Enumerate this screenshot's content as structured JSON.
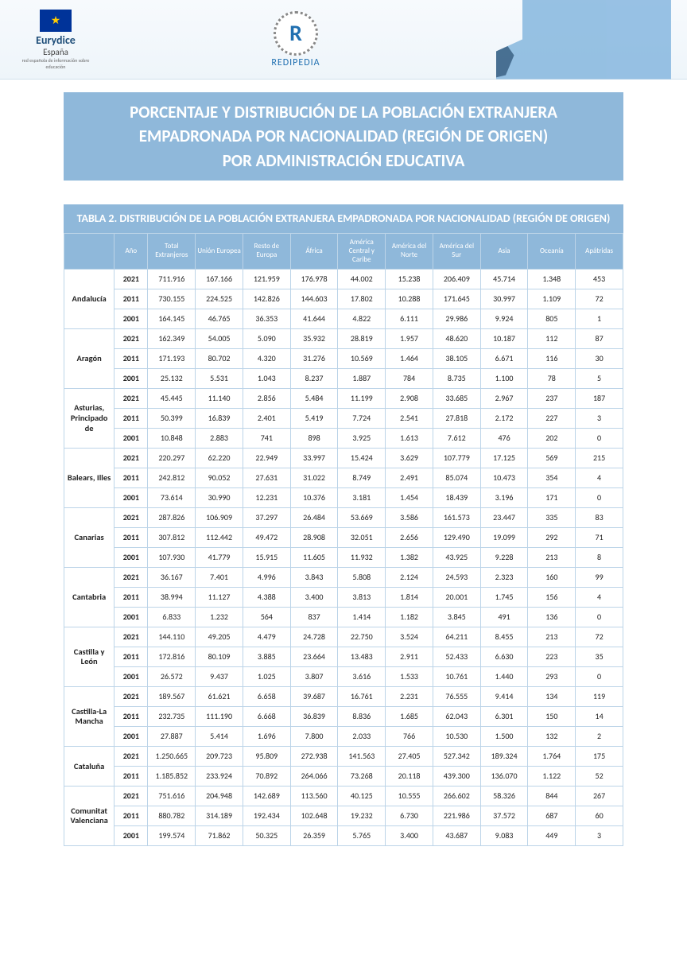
{
  "header": {
    "eurydice": "Eurydice",
    "espana": "España",
    "sub": "red española de información sobre educación",
    "redipedia": "REDIPEDIA",
    "r": "R"
  },
  "title": {
    "line1": "PORCENTAJE Y DISTRIBUCIÓN DE LA POBLACIÓN EXTRANJERA",
    "line2": "EMPADRONADA POR NACIONALIDAD (REGIÓN DE ORIGEN)",
    "line3": "POR ADMINISTRACIÓN EDUCATIVA"
  },
  "table": {
    "title": "TABLA 2. DISTRIBUCIÓN DE LA POBLACIÓN EXTRANJERA EMPADRONADA POR NACIONALIDAD (REGIÓN DE ORIGEN)",
    "columns": [
      "",
      "Año",
      "Total Extranjeros",
      "Unión Europea",
      "Resto de Europa",
      "África",
      "América Central y Caribe",
      "América del Norte",
      "América del Sur",
      "Asia",
      "Oceanía",
      "Apátridas"
    ],
    "regions": [
      {
        "name": "Andalucía",
        "rows": [
          [
            "2021",
            "711.916",
            "167.166",
            "121.959",
            "176.978",
            "44.002",
            "15.238",
            "206.409",
            "45.714",
            "1.348",
            "453"
          ],
          [
            "2011",
            "730.155",
            "224.525",
            "142.826",
            "144.603",
            "17.802",
            "10.288",
            "171.645",
            "30.997",
            "1.109",
            "72"
          ],
          [
            "2001",
            "164.145",
            "46.765",
            "36.353",
            "41.644",
            "4.822",
            "6.111",
            "29.986",
            "9.924",
            "805",
            "1"
          ]
        ]
      },
      {
        "name": "Aragón",
        "rows": [
          [
            "2021",
            "162.349",
            "54.005",
            "5.090",
            "35.932",
            "28.819",
            "1.957",
            "48.620",
            "10.187",
            "112",
            "87"
          ],
          [
            "2011",
            "171.193",
            "80.702",
            "4.320",
            "31.276",
            "10.569",
            "1.464",
            "38.105",
            "6.671",
            "116",
            "30"
          ],
          [
            "2001",
            "25.132",
            "5.531",
            "1.043",
            "8.237",
            "1.887",
            "784",
            "8.735",
            "1.100",
            "78",
            "5"
          ]
        ]
      },
      {
        "name": "Asturias, Principado de",
        "rows": [
          [
            "2021",
            "45.445",
            "11.140",
            "2.856",
            "5.484",
            "11.199",
            "2.908",
            "33.685",
            "2.967",
            "237",
            "187"
          ],
          [
            "2011",
            "50.399",
            "16.839",
            "2.401",
            "5.419",
            "7.724",
            "2.541",
            "27.818",
            "2.172",
            "227",
            "3"
          ],
          [
            "2001",
            "10.848",
            "2.883",
            "741",
            "898",
            "3.925",
            "1.613",
            "7.612",
            "476",
            "202",
            "0"
          ]
        ]
      },
      {
        "name": "Balears, Illes",
        "rows": [
          [
            "2021",
            "220.297",
            "62.220",
            "22.949",
            "33.997",
            "15.424",
            "3.629",
            "107.779",
            "17.125",
            "569",
            "215"
          ],
          [
            "2011",
            "242.812",
            "90.052",
            "27.631",
            "31.022",
            "8.749",
            "2.491",
            "85.074",
            "10.473",
            "354",
            "4"
          ],
          [
            "2001",
            "73.614",
            "30.990",
            "12.231",
            "10.376",
            "3.181",
            "1.454",
            "18.439",
            "3.196",
            "171",
            "0"
          ]
        ]
      },
      {
        "name": "Canarias",
        "rows": [
          [
            "2021",
            "287.826",
            "106.909",
            "37.297",
            "26.484",
            "53.669",
            "3.586",
            "161.573",
            "23.447",
            "335",
            "83"
          ],
          [
            "2011",
            "307.812",
            "112.442",
            "49.472",
            "28.908",
            "32.051",
            "2.656",
            "129.490",
            "19.099",
            "292",
            "71"
          ],
          [
            "2001",
            "107.930",
            "41.779",
            "15.915",
            "11.605",
            "11.932",
            "1.382",
            "43.925",
            "9.228",
            "213",
            "8"
          ]
        ]
      },
      {
        "name": "Cantabria",
        "rows": [
          [
            "2021",
            "36.167",
            "7.401",
            "4.996",
            "3.843",
            "5.808",
            "2.124",
            "24.593",
            "2.323",
            "160",
            "99"
          ],
          [
            "2011",
            "38.994",
            "11.127",
            "4.388",
            "3.400",
            "3.813",
            "1.814",
            "20.001",
            "1.745",
            "156",
            "4"
          ],
          [
            "2001",
            "6.833",
            "1.232",
            "564",
            "837",
            "1.414",
            "1.182",
            "3.845",
            "491",
            "136",
            "0"
          ]
        ]
      },
      {
        "name": "Castilla y León",
        "rows": [
          [
            "2021",
            "144.110",
            "49.205",
            "4.479",
            "24.728",
            "22.750",
            "3.524",
            "64.211",
            "8.455",
            "213",
            "72"
          ],
          [
            "2011",
            "172.816",
            "80.109",
            "3.885",
            "23.664",
            "13.483",
            "2.911",
            "52.433",
            "6.630",
            "223",
            "35"
          ],
          [
            "2001",
            "26.572",
            "9.437",
            "1.025",
            "3.807",
            "3.616",
            "1.533",
            "10.761",
            "1.440",
            "293",
            "0"
          ]
        ]
      },
      {
        "name": "Castilla-La Mancha",
        "rows": [
          [
            "2021",
            "189.567",
            "61.621",
            "6.658",
            "39.687",
            "16.761",
            "2.231",
            "76.555",
            "9.414",
            "134",
            "119"
          ],
          [
            "2011",
            "232.735",
            "111.190",
            "6.668",
            "36.839",
            "8.836",
            "1.685",
            "62.043",
            "6.301",
            "150",
            "14"
          ],
          [
            "2001",
            "27.887",
            "5.414",
            "1.696",
            "7.800",
            "2.033",
            "766",
            "10.530",
            "1.500",
            "132",
            "2"
          ]
        ]
      },
      {
        "name": "Cataluña",
        "rows": [
          [
            "2021",
            "1.250.665",
            "209.723",
            "95.809",
            "272.938",
            "141.563",
            "27.405",
            "527.342",
            "189.324",
            "1.764",
            "175"
          ],
          [
            "2011",
            "1.185.852",
            "233.924",
            "70.892",
            "264.066",
            "73.268",
            "20.118",
            "439.300",
            "136.070",
            "1.122",
            "52"
          ]
        ]
      },
      {
        "name": "Comunitat Valenciana",
        "rows": [
          [
            "2021",
            "751.616",
            "204.948",
            "142.689",
            "113.560",
            "40.125",
            "10.555",
            "266.602",
            "58.326",
            "844",
            "267"
          ],
          [
            "2011",
            "880.782",
            "314.189",
            "192.434",
            "102.648",
            "19.232",
            "6.730",
            "221.986",
            "37.572",
            "687",
            "60"
          ],
          [
            "2001",
            "199.574",
            "71.862",
            "50.325",
            "26.359",
            "5.765",
            "3.400",
            "43.687",
            "9.083",
            "449",
            "3"
          ]
        ]
      }
    ]
  },
  "colors": {
    "header_bg": "#8fb8da",
    "header_text": "#ffffff",
    "border": "#bcd4e8",
    "cell_text": "#222222"
  }
}
